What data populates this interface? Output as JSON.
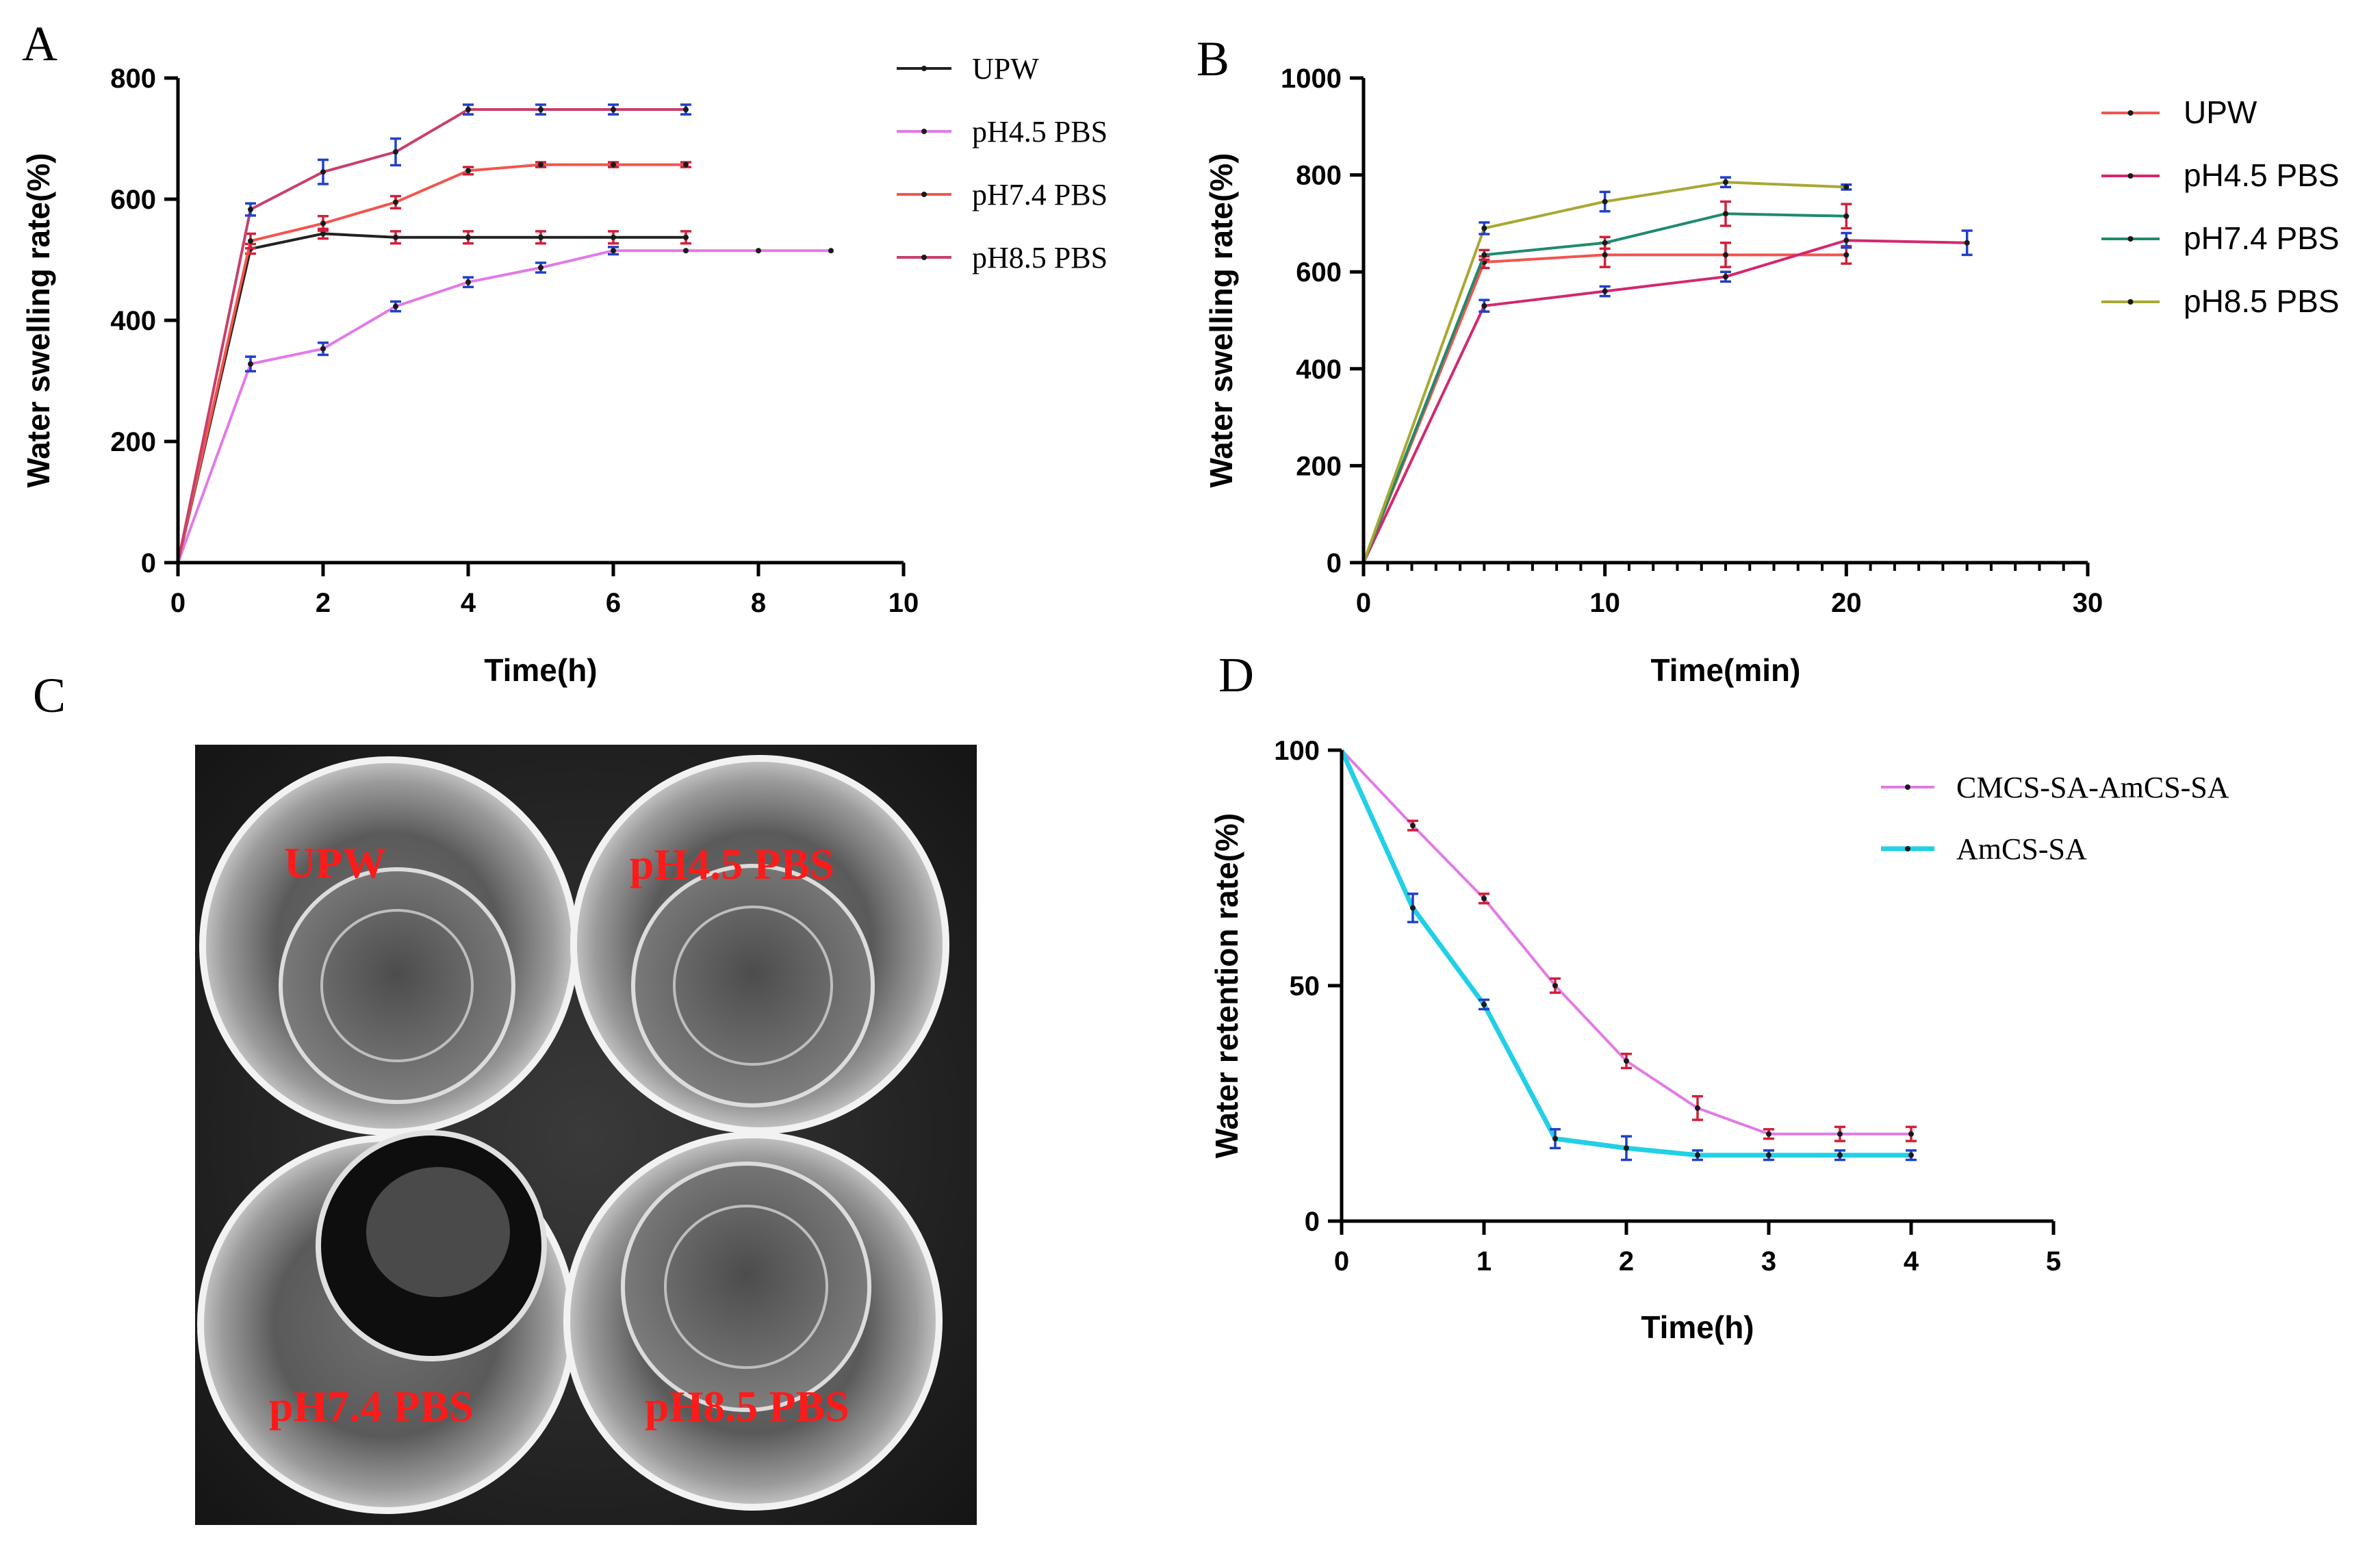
{
  "panels": {
    "A": {
      "letter": "A",
      "chart_data": {
        "type": "line",
        "xlabel": "Time(h)",
        "ylabel": "Water swelling rate(%)",
        "xlim": [
          0,
          10
        ],
        "ylim": [
          0,
          800
        ],
        "xticks": [
          "0",
          "2",
          "4",
          "6",
          "8",
          "10"
        ],
        "yticks": [
          "0",
          "200",
          "400",
          "600",
          "800"
        ],
        "legend_position": "top-right",
        "series": [
          {
            "name": "UPW",
            "color": "#222222",
            "x": [
              0,
              1,
              2,
              3,
              4,
              5,
              6,
              7
            ],
            "y": [
              0,
              518,
              543,
              537,
              537,
              537,
              537,
              537
            ],
            "err": [
              0,
              8,
              8,
              10,
              10,
              10,
              10,
              10
            ]
          },
          {
            "name": "pH4.5 PBS",
            "color": "#e27ae6",
            "x": [
              0,
              1,
              2,
              3,
              4,
              5,
              6,
              7,
              8,
              9
            ],
            "y": [
              0,
              328,
              353,
              423,
              463,
              487,
              515,
              515,
              515,
              515
            ],
            "err": [
              0,
              12,
              10,
              8,
              8,
              8,
              6,
              0,
              0,
              0
            ]
          },
          {
            "name": "pH7.4 PBS",
            "color": "#f2554f",
            "x": [
              0,
              1,
              2,
              3,
              4,
              5,
              6,
              7
            ],
            "y": [
              0,
              531,
              560,
              595,
              647,
              657,
              657,
              657
            ],
            "err": [
              0,
              12,
              12,
              10,
              6,
              4,
              4,
              4
            ]
          },
          {
            "name": "pH8.5 PBS",
            "color": "#c8406a",
            "x": [
              0,
              1,
              2,
              3,
              4,
              5,
              6,
              7
            ],
            "y": [
              0,
              583,
              645,
              678,
              748,
              748,
              748,
              748
            ],
            "err": [
              0,
              10,
              20,
              22,
              8,
              8,
              8,
              8
            ]
          }
        ]
      }
    },
    "B": {
      "letter": "B",
      "chart_data": {
        "type": "line",
        "xlabel": "Time(min)",
        "ylabel": "Water swelling rate(%)",
        "xlim": [
          0,
          30
        ],
        "ylim": [
          0,
          1000
        ],
        "xticks": [
          "0",
          "10",
          "20",
          "30"
        ],
        "yticks": [
          "0",
          "200",
          "400",
          "600",
          "800",
          "1000"
        ],
        "legend_position": "top-right",
        "series": [
          {
            "name": "UPW",
            "color": "#f2554f",
            "x": [
              0,
              5,
              10,
              15,
              20
            ],
            "y": [
              0,
              620,
              635,
              635,
              635
            ],
            "err": [
              0,
              12,
              25,
              25,
              18
            ]
          },
          {
            "name": "pH4.5 PBS",
            "color": "#d2286e",
            "x": [
              0,
              5,
              10,
              15,
              20,
              25
            ],
            "y": [
              0,
              530,
              560,
              590,
              665,
              660
            ],
            "err": [
              0,
              12,
              10,
              10,
              15,
              25
            ]
          },
          {
            "name": "pH7.4 PBS",
            "color": "#1f8a6e",
            "x": [
              0,
              5,
              10,
              15,
              20
            ],
            "y": [
              0,
              635,
              660,
              720,
              715
            ],
            "err": [
              0,
              10,
              12,
              25,
              25
            ]
          },
          {
            "name": "pH8.5 PBS",
            "color": "#a8a833",
            "x": [
              0,
              5,
              10,
              15,
              20
            ],
            "y": [
              0,
              690,
              745,
              785,
              775
            ],
            "err": [
              0,
              12,
              20,
              10,
              5
            ]
          }
        ]
      }
    },
    "C": {
      "letter": "C",
      "labels": [
        "UPW",
        "pH4.5 PBS",
        "pH7.4 PBS",
        "pH8.5 PBS"
      ]
    },
    "D": {
      "letter": "D",
      "chart_data": {
        "type": "line",
        "xlabel": "Time(h)",
        "ylabel": "Water retention rate(%)",
        "xlim": [
          0,
          5
        ],
        "ylim": [
          0,
          100
        ],
        "xticks": [
          "0",
          "1",
          "2",
          "3",
          "4",
          "5"
        ],
        "yticks": [
          "0",
          "50",
          "100"
        ],
        "legend_position": "top-right",
        "series": [
          {
            "name": "CMCS-SA-AmCS-SA",
            "color": "#e27ae6",
            "x": [
              0,
              0.5,
              1,
              1.5,
              2,
              2.5,
              3,
              3.5,
              4
            ],
            "y": [
              100,
              84,
              68.5,
              50,
              34,
              24,
              18.5,
              18.5,
              18.5
            ],
            "err": [
              0,
              1,
              1,
              1.5,
              1.5,
              2.5,
              1,
              1.5,
              1.5
            ]
          },
          {
            "name": "AmCS-SA",
            "color": "#22d0e6",
            "x": [
              0,
              0.5,
              1,
              1.5,
              2,
              2.5,
              3,
              3.5,
              4
            ],
            "y": [
              100,
              66.5,
              46,
              17.5,
              15.5,
              14,
              14,
              14,
              14
            ],
            "err": [
              0,
              3,
              1,
              2,
              2.5,
              1,
              1,
              1,
              1
            ]
          }
        ]
      }
    }
  }
}
